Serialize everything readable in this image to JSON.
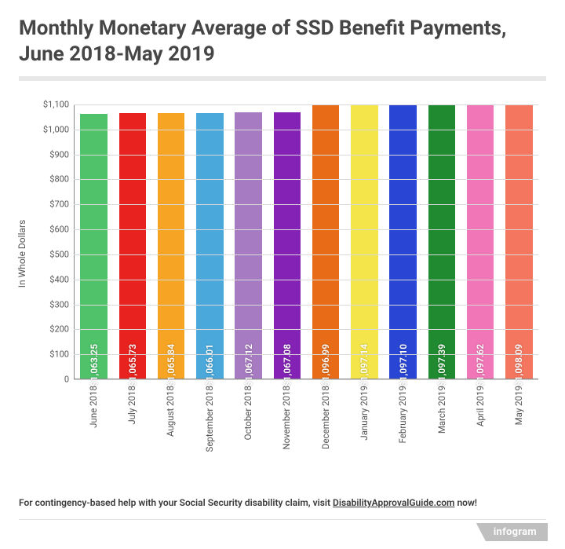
{
  "title": "Monthly Monetary Average of SSD Benefit Payments, June 2018-May 2019",
  "chart": {
    "type": "bar",
    "ylabel": "In Whole Dollars",
    "ylim": [
      0,
      1100
    ],
    "ytick_step": 100,
    "yticks": [
      "0",
      "$100",
      "$200",
      "$300",
      "$400",
      "$500",
      "$600",
      "$700",
      "$800",
      "$900",
      "$1,000",
      "$1,100"
    ],
    "grid_color": "#d9d9d9",
    "background_color": "#ffffff",
    "bar_width_pct": 70,
    "categories": [
      "June 2018",
      "July 2018",
      "August 2018",
      "September 2018",
      "October 2018",
      "November 2018",
      "December 2018",
      "January 2019",
      "February 2019",
      "March 2019",
      "April 2019",
      "May 2019"
    ],
    "values": [
      1063.25,
      1065.73,
      1065.84,
      1066.01,
      1067.12,
      1067.08,
      1096.99,
      1097.14,
      1097.1,
      1097.39,
      1097.62,
      1098.09
    ],
    "value_labels": [
      "$1,063.25",
      "$1,065.73",
      "$1,065.84",
      "$1,066.01",
      "$1,067.12",
      "$1,067.08",
      "$1,096.99",
      "$1,097.14",
      "$1,097.10",
      "$1,097.39",
      "$1,097.62",
      "$1,098.09"
    ],
    "bar_colors": [
      "#4fc26a",
      "#e8221f",
      "#f6a423",
      "#4aa8da",
      "#a77bc1",
      "#8322b5",
      "#e86c17",
      "#f3e54a",
      "#2945d4",
      "#1f8a2f",
      "#f176b8",
      "#f5765f"
    ],
    "label_fontsize": 12,
    "axis_fontsize": 11
  },
  "footer": {
    "prefix": "For contingency-based help with your Social Security disability claim, visit ",
    "link_text": "DisabilityApprovalGuide.com",
    "suffix": " now!"
  },
  "brand": "infogram"
}
